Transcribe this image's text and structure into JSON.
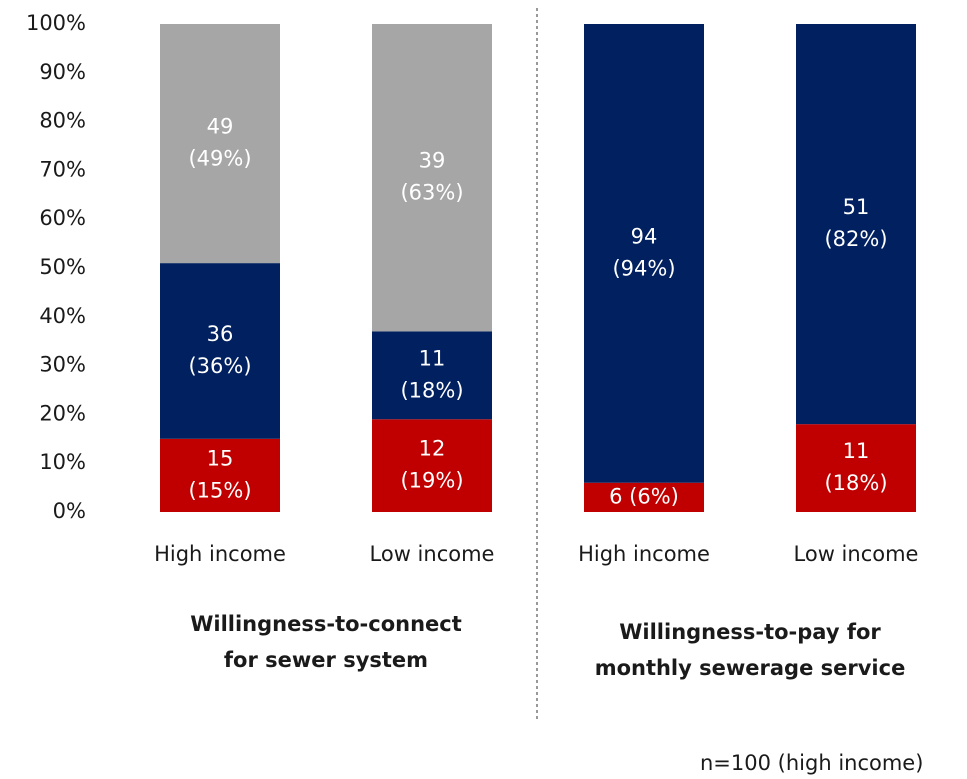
{
  "chart_data": {
    "type": "stacked_bar",
    "categories": [
      "High income",
      "Low income",
      "High income",
      "Low income"
    ],
    "groups": [
      {
        "label": [
          "Willingness-to-connect",
          "for sewer system"
        ]
      },
      {
        "label": [
          "Willingness-to-pay for",
          "monthly sewerage service"
        ]
      }
    ],
    "series": [
      {
        "color": "#c00000",
        "values": [
          15,
          19,
          6,
          18
        ],
        "value_labels": [
          [
            "15",
            "(15%)"
          ],
          [
            "12",
            "(19%)"
          ],
          [
            "6 (6%)"
          ],
          [
            "11",
            "(18%)"
          ]
        ]
      },
      {
        "color": "#002060",
        "values": [
          36,
          18,
          94,
          82
        ],
        "value_labels": [
          [
            "36",
            "(36%)"
          ],
          [
            "11",
            "(18%)"
          ],
          [
            "94",
            "(94%)"
          ],
          [
            "51",
            "(82%)"
          ]
        ]
      },
      {
        "color": "#a6a6a6",
        "values": [
          49,
          63,
          null,
          null
        ],
        "value_labels": [
          [
            "49",
            "(49%)"
          ],
          [
            "39",
            "(63%)"
          ],
          null,
          null
        ]
      }
    ],
    "ylim": [
      0,
      100
    ],
    "yticks": [
      {
        "value": 0,
        "label": "0%"
      },
      {
        "value": 10,
        "label": "10%"
      },
      {
        "value": 20,
        "label": "20%"
      },
      {
        "value": 30,
        "label": "30%"
      },
      {
        "value": 40,
        "label": "40%"
      },
      {
        "value": 50,
        "label": "50%"
      },
      {
        "value": 60,
        "label": "60%"
      },
      {
        "value": 70,
        "label": "70%"
      },
      {
        "value": 80,
        "label": "80%"
      },
      {
        "value": 90,
        "label": "90%"
      },
      {
        "value": 100,
        "label": "100%"
      }
    ],
    "note": "n=100 (high income)"
  }
}
